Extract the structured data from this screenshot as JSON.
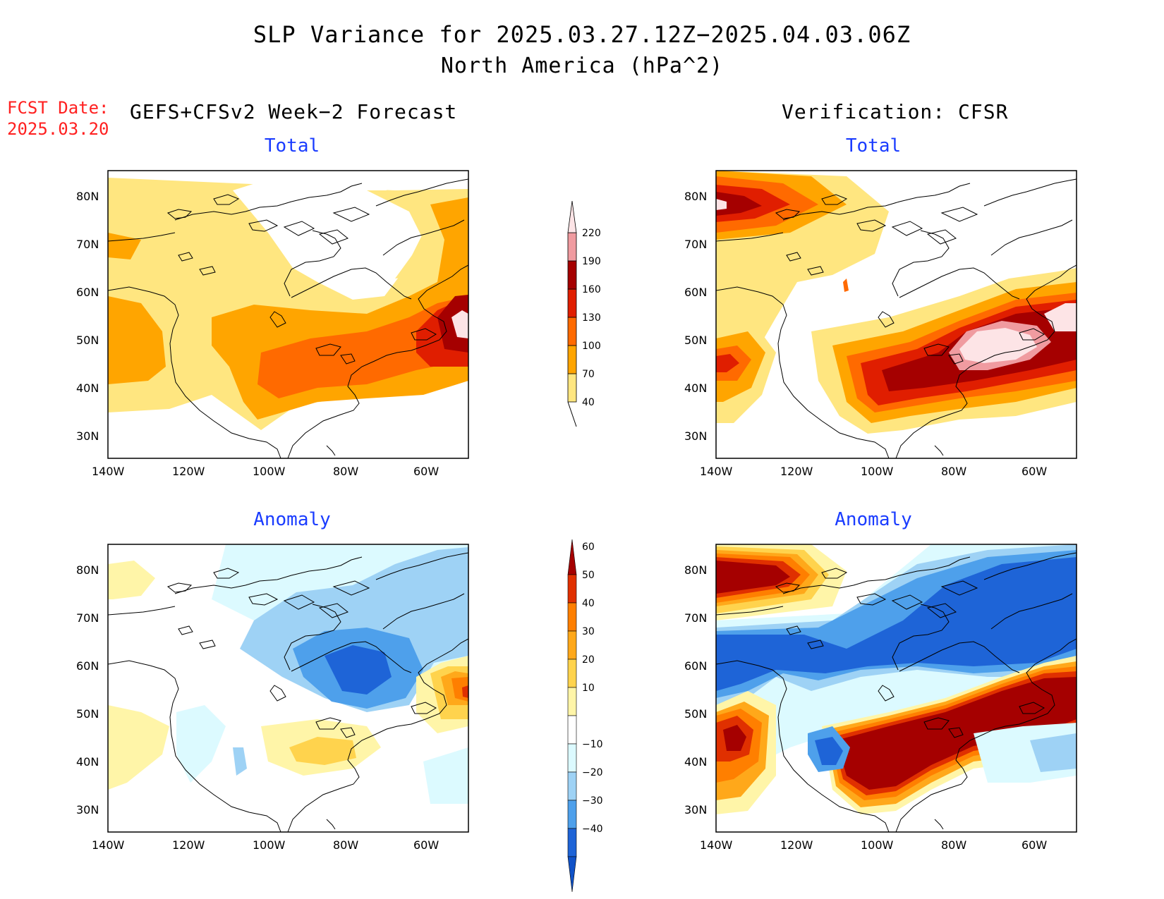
{
  "title": {
    "line1": "SLP Variance for 2025.03.27.12Z−2025.04.03.06Z",
    "line2": "North America (hPa^2)"
  },
  "fcst_date": {
    "label": "FCST Date:",
    "value": "2025.03.20"
  },
  "headers": {
    "left": "GEFS+CFSv2 Week−2 Forecast",
    "right": "Verification: CFSR"
  },
  "panels": {
    "top_left": "Total",
    "top_right": "Total",
    "bottom_left": "Anomaly",
    "bottom_right": "Anomaly"
  },
  "axes": {
    "lat_labels": [
      "80N",
      "70N",
      "60N",
      "50N",
      "40N",
      "30N"
    ],
    "lon_labels": [
      "140W",
      "120W",
      "100W",
      "80W",
      "60W"
    ],
    "lat_range": [
      25,
      85
    ],
    "lon_range": [
      -140,
      -50
    ]
  },
  "colorbars": {
    "total": {
      "ticks": [
        "40",
        "70",
        "100",
        "130",
        "160",
        "190",
        "220"
      ],
      "colors": [
        "#ffe680",
        "#ffa500",
        "#ff6a00",
        "#e01e00",
        "#a50000",
        "#f09ba0",
        "#fde4e6"
      ]
    },
    "anomaly": {
      "ticks": [
        "60",
        "50",
        "40",
        "30",
        "20",
        "10",
        "−10",
        "−20",
        "−30",
        "−40"
      ],
      "colors": [
        "#a50000",
        "#e03000",
        "#ff7f00",
        "#ffa81a",
        "#ffd34d",
        "#fff5a8",
        "#ffffff",
        "#dcfaff",
        "#9ed2f5",
        "#4ea0eb",
        "#1e64d7",
        "#1052c8"
      ]
    }
  },
  "map_data": {
    "variable": "SLP variance",
    "units": "hPa^2",
    "forecast_total_max_region": "Newfoundland / Gulf of St. Lawrence",
    "verification_total_max_region": "Great Lakes to Quebec",
    "forecast_anomaly_min_region": "Hudson Bay",
    "verification_anomaly_max_region": "Great Lakes to Atlantic Canada"
  }
}
